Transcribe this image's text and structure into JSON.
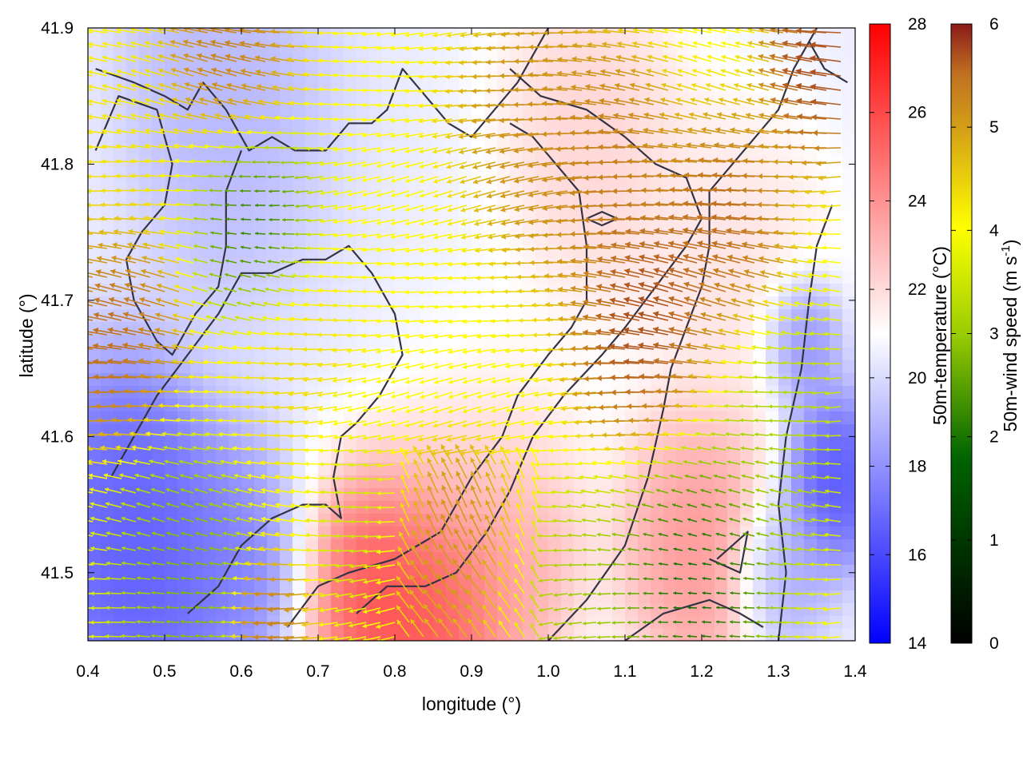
{
  "chart_data": {
    "type": "heatmap",
    "title": "",
    "xlabel": "longitude (°)",
    "ylabel": "latitude (°)",
    "xlim": [
      0.4,
      1.4
    ],
    "ylim": [
      41.45,
      41.9
    ],
    "x_ticks": [
      "0.4",
      "0.5",
      "0.6",
      "0.7",
      "0.8",
      "0.9",
      "1.0",
      "1.1",
      "1.2",
      "1.3",
      "1.4"
    ],
    "y_ticks": [
      "41.5",
      "41.6",
      "41.7",
      "41.8",
      "41.9"
    ],
    "grid": false,
    "temperature_colorbar": {
      "label": "50m-temperature (°C)",
      "range": [
        14,
        28
      ],
      "ticks": [
        "14",
        "16",
        "18",
        "20",
        "22",
        "24",
        "26",
        "28"
      ],
      "colors": [
        "#0000ff",
        "#ffffff",
        "#ff0000"
      ]
    },
    "wind_colorbar": {
      "label": "50m-wind speed (m s",
      "label_sup": "-1",
      "label_end": ")",
      "range": [
        0,
        6
      ],
      "ticks": [
        "0",
        "1",
        "2",
        "3",
        "4",
        "5",
        "6"
      ],
      "colors": [
        "#000000",
        "#006400",
        "#9acd00",
        "#ffff00",
        "#d4a017",
        "#c07020",
        "#8b1a1a"
      ]
    },
    "temperature_regions": [
      {
        "lon": 0.47,
        "lat": 41.5,
        "t": 16.0,
        "r": 0.1
      },
      {
        "lon": 0.45,
        "lat": 41.55,
        "t": 16.5,
        "r": 0.08
      },
      {
        "lon": 0.6,
        "lat": 41.52,
        "t": 17.0,
        "r": 0.07
      },
      {
        "lon": 0.62,
        "lat": 41.8,
        "t": 18.5,
        "r": 0.1
      },
      {
        "lon": 0.55,
        "lat": 41.88,
        "t": 19.0,
        "r": 0.08
      },
      {
        "lon": 0.78,
        "lat": 41.5,
        "t": 27.5,
        "r": 0.08
      },
      {
        "lon": 0.9,
        "lat": 41.52,
        "t": 25.0,
        "r": 0.1
      },
      {
        "lon": 0.85,
        "lat": 41.47,
        "t": 26.5,
        "r": 0.06
      },
      {
        "lon": 1.2,
        "lat": 41.52,
        "t": 24.5,
        "r": 0.08
      },
      {
        "lon": 1.37,
        "lat": 41.57,
        "t": 15.5,
        "r": 0.05
      },
      {
        "lon": 1.33,
        "lat": 41.67,
        "t": 16.5,
        "r": 0.04
      },
      {
        "lon": 1.3,
        "lat": 41.5,
        "t": 18.0,
        "r": 0.05
      },
      {
        "lon": 1.05,
        "lat": 41.82,
        "t": 22.5,
        "r": 0.1
      },
      {
        "lon": 1.25,
        "lat": 41.72,
        "t": 22.0,
        "r": 0.1
      },
      {
        "lon": 0.75,
        "lat": 41.7,
        "t": 20.5,
        "r": 0.15
      },
      {
        "lon": 0.9,
        "lat": 41.62,
        "t": 21.0,
        "r": 0.1
      }
    ],
    "wind_regions": [
      {
        "lon": 0.45,
        "lat": 41.68,
        "s": 5.6,
        "r": 0.06
      },
      {
        "lon": 0.6,
        "lat": 41.88,
        "s": 5.0,
        "r": 0.06
      },
      {
        "lon": 1.37,
        "lat": 41.87,
        "s": 6.0,
        "r": 0.05
      },
      {
        "lon": 1.15,
        "lat": 41.68,
        "s": 6.0,
        "r": 0.07
      },
      {
        "lon": 1.25,
        "lat": 41.75,
        "s": 5.5,
        "r": 0.06
      },
      {
        "lon": 1.0,
        "lat": 41.82,
        "s": 4.6,
        "r": 0.08
      },
      {
        "lon": 1.1,
        "lat": 41.8,
        "s": 5.0,
        "r": 0.06
      },
      {
        "lon": 0.88,
        "lat": 41.52,
        "s": 4.5,
        "r": 0.06
      },
      {
        "lon": 0.65,
        "lat": 41.47,
        "s": 5.5,
        "r": 0.04
      },
      {
        "lon": 0.68,
        "lat": 41.62,
        "s": 3.5,
        "r": 0.08
      },
      {
        "lon": 0.85,
        "lat": 41.7,
        "s": 3.0,
        "r": 0.08
      },
      {
        "lon": 0.45,
        "lat": 41.8,
        "s": 3.3,
        "r": 0.08
      },
      {
        "lon": 1.3,
        "lat": 41.6,
        "s": 2.0,
        "r": 0.08
      },
      {
        "lon": 0.62,
        "lat": 41.76,
        "s": 0.8,
        "r": 0.06
      },
      {
        "lon": 0.55,
        "lat": 41.5,
        "s": 1.5,
        "r": 0.08
      },
      {
        "lon": 1.2,
        "lat": 41.5,
        "s": 0.6,
        "r": 0.08
      },
      {
        "lon": 1.05,
        "lat": 41.48,
        "s": 1.8,
        "r": 0.06
      },
      {
        "lon": 0.75,
        "lat": 41.55,
        "s": 2.2,
        "r": 0.06
      }
    ],
    "contours": [
      [
        [
          0.41,
          41.87
        ],
        [
          0.46,
          41.86
        ],
        [
          0.5,
          41.85
        ],
        [
          0.53,
          41.84
        ],
        [
          0.55,
          41.86
        ],
        [
          0.58,
          41.84
        ],
        [
          0.61,
          41.81
        ],
        [
          0.64,
          41.82
        ],
        [
          0.67,
          41.81
        ],
        [
          0.71,
          41.81
        ],
        [
          0.74,
          41.83
        ],
        [
          0.77,
          41.83
        ],
        [
          0.79,
          41.84
        ],
        [
          0.81,
          41.87
        ],
        [
          0.84,
          41.85
        ],
        [
          0.87,
          41.83
        ],
        [
          0.9,
          41.82
        ],
        [
          0.93,
          41.84
        ],
        [
          0.96,
          41.86
        ],
        [
          0.98,
          41.88
        ],
        [
          1.0,
          41.9
        ]
      ],
      [
        [
          0.41,
          41.81
        ],
        [
          0.44,
          41.85
        ],
        [
          0.49,
          41.84
        ],
        [
          0.51,
          41.8
        ],
        [
          0.5,
          41.77
        ],
        [
          0.47,
          41.75
        ],
        [
          0.45,
          41.73
        ],
        [
          0.46,
          41.7
        ],
        [
          0.49,
          41.67
        ],
        [
          0.51,
          41.66
        ],
        [
          0.54,
          41.69
        ],
        [
          0.57,
          41.71
        ],
        [
          0.58,
          41.74
        ],
        [
          0.58,
          41.78
        ],
        [
          0.6,
          41.81
        ]
      ],
      [
        [
          0.43,
          41.57
        ],
        [
          0.46,
          41.6
        ],
        [
          0.49,
          41.63
        ],
        [
          0.53,
          41.66
        ],
        [
          0.57,
          41.69
        ],
        [
          0.6,
          41.72
        ],
        [
          0.64,
          41.72
        ],
        [
          0.68,
          41.73
        ],
        [
          0.71,
          41.73
        ],
        [
          0.74,
          41.74
        ],
        [
          0.77,
          41.72
        ],
        [
          0.8,
          41.69
        ],
        [
          0.81,
          41.66
        ],
        [
          0.78,
          41.63
        ],
        [
          0.75,
          41.61
        ],
        [
          0.73,
          41.6
        ],
        [
          0.72,
          41.57
        ],
        [
          0.73,
          41.54
        ],
        [
          0.71,
          41.55
        ],
        [
          0.68,
          41.55
        ],
        [
          0.64,
          41.54
        ],
        [
          0.6,
          41.52
        ],
        [
          0.57,
          41.49
        ],
        [
          0.53,
          41.47
        ]
      ],
      [
        [
          0.66,
          41.46
        ],
        [
          0.7,
          41.49
        ],
        [
          0.74,
          41.5
        ],
        [
          0.8,
          41.51
        ],
        [
          0.86,
          41.53
        ],
        [
          0.9,
          41.57
        ],
        [
          0.94,
          41.6
        ],
        [
          0.96,
          41.63
        ],
        [
          1.0,
          41.66
        ],
        [
          1.03,
          41.68
        ],
        [
          1.05,
          41.7
        ],
        [
          1.05,
          41.74
        ],
        [
          1.04,
          41.78
        ],
        [
          1.01,
          41.8
        ],
        [
          0.98,
          41.82
        ],
        [
          0.95,
          41.83
        ]
      ],
      [
        [
          0.75,
          41.47
        ],
        [
          0.79,
          41.49
        ],
        [
          0.84,
          41.49
        ],
        [
          0.88,
          41.5
        ],
        [
          0.92,
          41.53
        ],
        [
          0.95,
          41.56
        ],
        [
          0.98,
          41.6
        ],
        [
          1.02,
          41.63
        ],
        [
          1.07,
          41.66
        ],
        [
          1.1,
          41.68
        ],
        [
          1.14,
          41.71
        ],
        [
          1.18,
          41.74
        ],
        [
          1.2,
          41.76
        ],
        [
          1.18,
          41.79
        ],
        [
          1.14,
          41.8
        ],
        [
          1.1,
          41.82
        ],
        [
          1.05,
          41.84
        ],
        [
          0.99,
          41.85
        ],
        [
          0.95,
          41.87
        ]
      ],
      [
        [
          1.0,
          41.45
        ],
        [
          1.05,
          41.48
        ],
        [
          1.1,
          41.52
        ],
        [
          1.13,
          41.57
        ],
        [
          1.15,
          41.62
        ],
        [
          1.16,
          41.65
        ],
        [
          1.18,
          41.68
        ],
        [
          1.2,
          41.71
        ],
        [
          1.21,
          41.74
        ],
        [
          1.21,
          41.78
        ],
        [
          1.24,
          41.8
        ],
        [
          1.27,
          41.82
        ],
        [
          1.3,
          41.84
        ],
        [
          1.32,
          41.87
        ],
        [
          1.35,
          41.9
        ]
      ],
      [
        [
          1.1,
          41.45
        ],
        [
          1.15,
          41.47
        ],
        [
          1.21,
          41.48
        ],
        [
          1.25,
          41.47
        ],
        [
          1.28,
          41.46
        ]
      ],
      [
        [
          1.22,
          41.51
        ],
        [
          1.26,
          41.53
        ],
        [
          1.25,
          41.5
        ],
        [
          1.21,
          41.51
        ]
      ],
      [
        [
          1.3,
          41.45
        ],
        [
          1.31,
          41.5
        ],
        [
          1.3,
          41.55
        ],
        [
          1.31,
          41.6
        ],
        [
          1.33,
          41.65
        ],
        [
          1.34,
          41.7
        ],
        [
          1.35,
          41.74
        ],
        [
          1.37,
          41.77
        ]
      ],
      [
        [
          1.34,
          41.89
        ],
        [
          1.36,
          41.87
        ],
        [
          1.39,
          41.86
        ]
      ],
      [
        [
          1.05,
          41.76
        ],
        [
          1.07,
          41.765
        ],
        [
          1.09,
          41.76
        ],
        [
          1.07,
          41.755
        ],
        [
          1.05,
          41.76
        ]
      ]
    ]
  }
}
